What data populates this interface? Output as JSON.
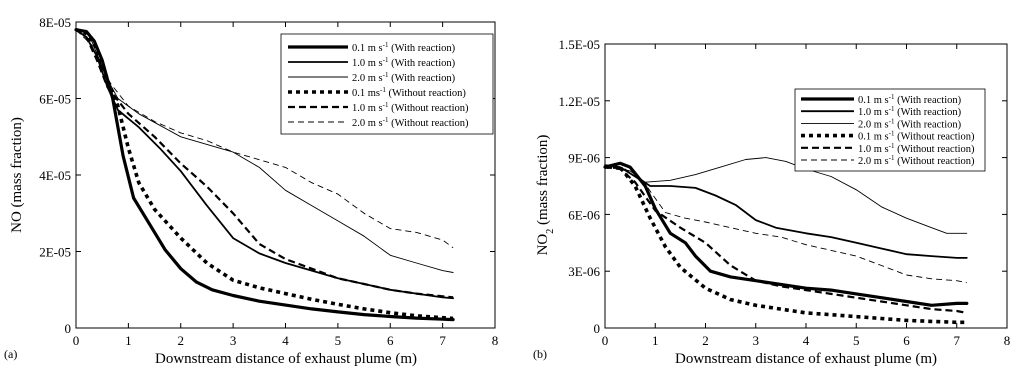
{
  "chart_data": [
    {
      "panel_label": "(a)",
      "type": "line",
      "xlabel": "Downstream distance of exhaust plume (m)",
      "ylabel": "NO (mass fraction)",
      "xlim": [
        0,
        8
      ],
      "ylim": [
        0,
        8e-05
      ],
      "xticks": [
        "0",
        "1",
        "2",
        "3",
        "4",
        "5",
        "6",
        "7",
        "8"
      ],
      "yticks": [
        "0",
        "2E-05",
        "4E-05",
        "6E-05",
        "8E-05"
      ],
      "grid": false,
      "legend_position": "top-right",
      "series": [
        {
          "name": "0.1 m s-1 (With reaction)",
          "style": "solid-thick",
          "points": [
            [
              0,
              7.8e-05
            ],
            [
              0.2,
              7.75e-05
            ],
            [
              0.35,
              7.5e-05
            ],
            [
              0.5,
              7e-05
            ],
            [
              0.7,
              6e-05
            ],
            [
              0.9,
              4.5e-05
            ],
            [
              1.1,
              3.4e-05
            ],
            [
              1.3,
              2.95e-05
            ],
            [
              1.5,
              2.5e-05
            ],
            [
              1.7,
              2.05e-05
            ],
            [
              2.0,
              1.55e-05
            ],
            [
              2.3,
              1.2e-05
            ],
            [
              2.6,
              1e-05
            ],
            [
              3.0,
              8.5e-06
            ],
            [
              3.5,
              7e-06
            ],
            [
              4.0,
              6e-06
            ],
            [
              4.5,
              5e-06
            ],
            [
              5.0,
              4.2e-06
            ],
            [
              5.5,
              3.5e-06
            ],
            [
              6.0,
              3e-06
            ],
            [
              6.5,
              2.6e-06
            ],
            [
              7.0,
              2.3e-06
            ],
            [
              7.2,
              2.2e-06
            ]
          ]
        },
        {
          "name": "1.0 m s-1 (With reaction)",
          "style": "solid-medium",
          "points": [
            [
              0,
              7.8e-05
            ],
            [
              0.2,
              7.6e-05
            ],
            [
              0.4,
              7.1e-05
            ],
            [
              0.6,
              6.3e-05
            ],
            [
              0.8,
              5.7e-05
            ],
            [
              1.2,
              5.25e-05
            ],
            [
              1.6,
              4.7e-05
            ],
            [
              2.0,
              4.1e-05
            ],
            [
              2.5,
              3.2e-05
            ],
            [
              3.0,
              2.35e-05
            ],
            [
              3.5,
              1.95e-05
            ],
            [
              4.0,
              1.7e-05
            ],
            [
              4.5,
              1.5e-05
            ],
            [
              5.0,
              1.3e-05
            ],
            [
              5.5,
              1.15e-05
            ],
            [
              6.0,
              1e-05
            ],
            [
              6.5,
              9e-06
            ],
            [
              7.0,
              8e-06
            ],
            [
              7.2,
              7.8e-06
            ]
          ]
        },
        {
          "name": "2.0 m s-1 (With reaction)",
          "style": "solid-thin",
          "points": [
            [
              0,
              7.8e-05
            ],
            [
              0.3,
              7.5e-05
            ],
            [
              0.6,
              6.5e-05
            ],
            [
              0.8,
              6e-05
            ],
            [
              1.2,
              5.6e-05
            ],
            [
              1.6,
              5.3e-05
            ],
            [
              2.0,
              5e-05
            ],
            [
              2.5,
              4.8e-05
            ],
            [
              3.0,
              4.6e-05
            ],
            [
              3.5,
              4.2e-05
            ],
            [
              4.0,
              3.6e-05
            ],
            [
              4.5,
              3.2e-05
            ],
            [
              5.0,
              2.8e-05
            ],
            [
              5.5,
              2.4e-05
            ],
            [
              6.0,
              1.9e-05
            ],
            [
              6.5,
              1.7e-05
            ],
            [
              7.0,
              1.5e-05
            ],
            [
              7.2,
              1.45e-05
            ]
          ]
        },
        {
          "name": "0.1 ms-1 (Without reaction)",
          "style": "dotted-thick",
          "points": [
            [
              0,
              7.8e-05
            ],
            [
              0.2,
              7.7e-05
            ],
            [
              0.4,
              7.3e-05
            ],
            [
              0.6,
              6.5e-05
            ],
            [
              0.8,
              5.8e-05
            ],
            [
              1.0,
              4.7e-05
            ],
            [
              1.2,
              3.8e-05
            ],
            [
              1.5,
              3.1e-05
            ],
            [
              2.0,
              2.35e-05
            ],
            [
              2.5,
              1.7e-05
            ],
            [
              3.0,
              1.25e-05
            ],
            [
              3.5,
              1.05e-05
            ],
            [
              4.0,
              9e-06
            ],
            [
              4.5,
              7.5e-06
            ],
            [
              5.0,
              6.2e-06
            ],
            [
              5.5,
              5e-06
            ],
            [
              6.0,
              4e-06
            ],
            [
              6.5,
              3.2e-06
            ],
            [
              7.0,
              2.7e-06
            ],
            [
              7.2,
              2.5e-06
            ]
          ]
        },
        {
          "name": "1.0 m s-1 (Without reaction)",
          "style": "dashed-medium",
          "points": [
            [
              0,
              7.8e-05
            ],
            [
              0.2,
              7.6e-05
            ],
            [
              0.4,
              7e-05
            ],
            [
              0.6,
              6.3e-05
            ],
            [
              1.0,
              5.6e-05
            ],
            [
              1.5,
              5e-05
            ],
            [
              2.0,
              4.3e-05
            ],
            [
              2.5,
              3.7e-05
            ],
            [
              3.0,
              3e-05
            ],
            [
              3.5,
              2.2e-05
            ],
            [
              4.0,
              1.8e-05
            ],
            [
              4.5,
              1.55e-05
            ],
            [
              5.0,
              1.3e-05
            ],
            [
              5.5,
              1.15e-05
            ],
            [
              6.0,
              1e-05
            ],
            [
              6.5,
              9e-06
            ],
            [
              7.0,
              8.3e-06
            ],
            [
              7.2,
              8e-06
            ]
          ]
        },
        {
          "name": "2.0 m s-1 (Without reaction)",
          "style": "dashed-thin",
          "points": [
            [
              0,
              7.8e-05
            ],
            [
              0.3,
              7.4e-05
            ],
            [
              0.6,
              6.5e-05
            ],
            [
              1.0,
              5.8e-05
            ],
            [
              1.5,
              5.4e-05
            ],
            [
              2.0,
              5.1e-05
            ],
            [
              2.5,
              4.9e-05
            ],
            [
              3.0,
              4.6e-05
            ],
            [
              3.5,
              4.4e-05
            ],
            [
              4.0,
              4.2e-05
            ],
            [
              4.5,
              3.8e-05
            ],
            [
              5.0,
              3.5e-05
            ],
            [
              5.5,
              3e-05
            ],
            [
              6.0,
              2.6e-05
            ],
            [
              6.5,
              2.5e-05
            ],
            [
              7.0,
              2.3e-05
            ],
            [
              7.2,
              2.1e-05
            ]
          ]
        }
      ]
    },
    {
      "panel_label": "(b)",
      "type": "line",
      "xlabel": "Downstream distance of exhaust plume (m)",
      "ylabel": "NO2 (mass fraction)",
      "xlim": [
        0,
        8
      ],
      "ylim": [
        0,
        1.5e-05
      ],
      "xticks": [
        "0",
        "1",
        "2",
        "3",
        "4",
        "5",
        "6",
        "7",
        "8"
      ],
      "yticks": [
        "0",
        "3E-06",
        "6E-06",
        "9E-06",
        "1.2E-05",
        "1.5E-05"
      ],
      "grid": false,
      "legend_position": "top-right",
      "series": [
        {
          "name": "0.1 m s-1 (With reaction)",
          "style": "solid-thick",
          "points": [
            [
              0,
              8.5e-06
            ],
            [
              0.3,
              8.7e-06
            ],
            [
              0.5,
              8.5e-06
            ],
            [
              0.8,
              7.5e-06
            ],
            [
              1.0,
              6.3e-06
            ],
            [
              1.3,
              5e-06
            ],
            [
              1.6,
              4.5e-06
            ],
            [
              1.8,
              3.8e-06
            ],
            [
              2.1,
              3e-06
            ],
            [
              2.5,
              2.7e-06
            ],
            [
              3.0,
              2.5e-06
            ],
            [
              3.5,
              2.3e-06
            ],
            [
              4.0,
              2.1e-06
            ],
            [
              4.5,
              2e-06
            ],
            [
              5.0,
              1.8e-06
            ],
            [
              5.5,
              1.6e-06
            ],
            [
              6.0,
              1.4e-06
            ],
            [
              6.5,
              1.2e-06
            ],
            [
              7.0,
              1.3e-06
            ],
            [
              7.2,
              1.3e-06
            ]
          ]
        },
        {
          "name": "1.0 m s-1 (With reaction)",
          "style": "solid-medium",
          "points": [
            [
              0,
              8.6e-06
            ],
            [
              0.3,
              8.5e-06
            ],
            [
              0.6,
              8e-06
            ],
            [
              0.9,
              7.5e-06
            ],
            [
              1.3,
              7.5e-06
            ],
            [
              1.8,
              7.4e-06
            ],
            [
              2.2,
              7e-06
            ],
            [
              2.6,
              6.5e-06
            ],
            [
              3.0,
              5.7e-06
            ],
            [
              3.4,
              5.3e-06
            ],
            [
              4.0,
              5e-06
            ],
            [
              4.5,
              4.8e-06
            ],
            [
              5.0,
              4.5e-06
            ],
            [
              5.5,
              4.2e-06
            ],
            [
              6.0,
              3.9e-06
            ],
            [
              6.5,
              3.8e-06
            ],
            [
              7.0,
              3.7e-06
            ],
            [
              7.2,
              3.7e-06
            ]
          ]
        },
        {
          "name": "2.0 m s-1 (With reaction)",
          "style": "solid-thin",
          "points": [
            [
              0,
              8.6e-06
            ],
            [
              0.5,
              8.3e-06
            ],
            [
              0.8,
              7.7e-06
            ],
            [
              1.3,
              7.8e-06
            ],
            [
              1.8,
              8.1e-06
            ],
            [
              2.3,
              8.5e-06
            ],
            [
              2.8,
              8.9e-06
            ],
            [
              3.2,
              9e-06
            ],
            [
              3.6,
              8.8e-06
            ],
            [
              4.0,
              8.4e-06
            ],
            [
              4.5,
              8e-06
            ],
            [
              5.0,
              7.3e-06
            ],
            [
              5.5,
              6.4e-06
            ],
            [
              6.0,
              5.8e-06
            ],
            [
              6.5,
              5.3e-06
            ],
            [
              6.8,
              5e-06
            ],
            [
              7.2,
              5e-06
            ]
          ]
        },
        {
          "name": "0.1 m s-1 (Without reaction)",
          "style": "dotted-thick",
          "points": [
            [
              0,
              8.5e-06
            ],
            [
              0.3,
              8.5e-06
            ],
            [
              0.6,
              7.5e-06
            ],
            [
              0.9,
              5.8e-06
            ],
            [
              1.2,
              4.3e-06
            ],
            [
              1.5,
              3.2e-06
            ],
            [
              2.0,
              2.1e-06
            ],
            [
              2.5,
              1.5e-06
            ],
            [
              3.0,
              1.2e-06
            ],
            [
              3.5,
              1e-06
            ],
            [
              4.0,
              8e-07
            ],
            [
              4.5,
              7e-07
            ],
            [
              5.0,
              6e-07
            ],
            [
              5.5,
              5e-07
            ],
            [
              6.0,
              4e-07
            ],
            [
              6.5,
              3.5e-07
            ],
            [
              7.0,
              3e-07
            ],
            [
              7.2,
              3e-07
            ]
          ]
        },
        {
          "name": "1.0 m s-1 (Without reaction)",
          "style": "dashed-medium",
          "points": [
            [
              0,
              8.5e-06
            ],
            [
              0.3,
              8.4e-06
            ],
            [
              0.6,
              7.7e-06
            ],
            [
              1.0,
              6.2e-06
            ],
            [
              1.5,
              5.3e-06
            ],
            [
              2.0,
              4.5e-06
            ],
            [
              2.5,
              3.3e-06
            ],
            [
              3.0,
              2.5e-06
            ],
            [
              3.5,
              2.2e-06
            ],
            [
              4.0,
              2e-06
            ],
            [
              4.5,
              1.8e-06
            ],
            [
              5.0,
              1.6e-06
            ],
            [
              5.5,
              1.4e-06
            ],
            [
              6.0,
              1.2e-06
            ],
            [
              6.5,
              1e-06
            ],
            [
              7.0,
              9e-07
            ],
            [
              7.2,
              8e-07
            ]
          ]
        },
        {
          "name": "2.0 m s-1 (Without reaction)",
          "style": "dashed-thin",
          "points": [
            [
              0,
              8.6e-06
            ],
            [
              0.4,
              8.4e-06
            ],
            [
              0.8,
              7.6e-06
            ],
            [
              1.2,
              6.1e-06
            ],
            [
              1.6,
              5.8e-06
            ],
            [
              2.0,
              5.6e-06
            ],
            [
              2.5,
              5.3e-06
            ],
            [
              3.0,
              5e-06
            ],
            [
              3.5,
              4.8e-06
            ],
            [
              4.0,
              4.4e-06
            ],
            [
              4.5,
              4.1e-06
            ],
            [
              5.0,
              3.8e-06
            ],
            [
              5.5,
              3.3e-06
            ],
            [
              6.0,
              2.8e-06
            ],
            [
              6.5,
              2.6e-06
            ],
            [
              7.0,
              2.5e-06
            ],
            [
              7.2,
              2.4e-06
            ]
          ]
        }
      ]
    }
  ],
  "legend_a": {
    "entries": [
      {
        "speed": "0.1 m s",
        "sup": "-1",
        "rest": " (With reaction)"
      },
      {
        "speed": "1.0 m s",
        "sup": "-1",
        "rest": " (With reaction)"
      },
      {
        "speed": "2.0 m s",
        "sup": "-1",
        "rest": " (With reaction)"
      },
      {
        "speed": "0.1 ms",
        "sup": "-1",
        "rest": " (Without reaction)"
      },
      {
        "speed": "1.0 m s",
        "sup": "-1",
        "rest": " (Without reaction)"
      },
      {
        "speed": "2.0 m s",
        "sup": "-1",
        "rest": " (Without reaction)"
      }
    ]
  },
  "legend_b": {
    "entries": [
      {
        "speed": "0.1 m s",
        "sup": "-1",
        "rest": " (With reaction)"
      },
      {
        "speed": "1.0 m s",
        "sup": "-1",
        "rest": " (With reaction)"
      },
      {
        "speed": "2.0 m s",
        "sup": "-1",
        "rest": " (With reaction)"
      },
      {
        "speed": "0.1 m s",
        "sup": "-1",
        "rest": " (Without reaction)"
      },
      {
        "speed": "1.0 m s",
        "sup": "-1",
        "rest": " (Without reaction)"
      },
      {
        "speed": "2.0 m s",
        "sup": "-1",
        "rest": " (Without reaction)"
      }
    ]
  },
  "ylabel_b_parts": {
    "main": "NO",
    "sub": "2",
    "rest": " (mass fraction)"
  }
}
